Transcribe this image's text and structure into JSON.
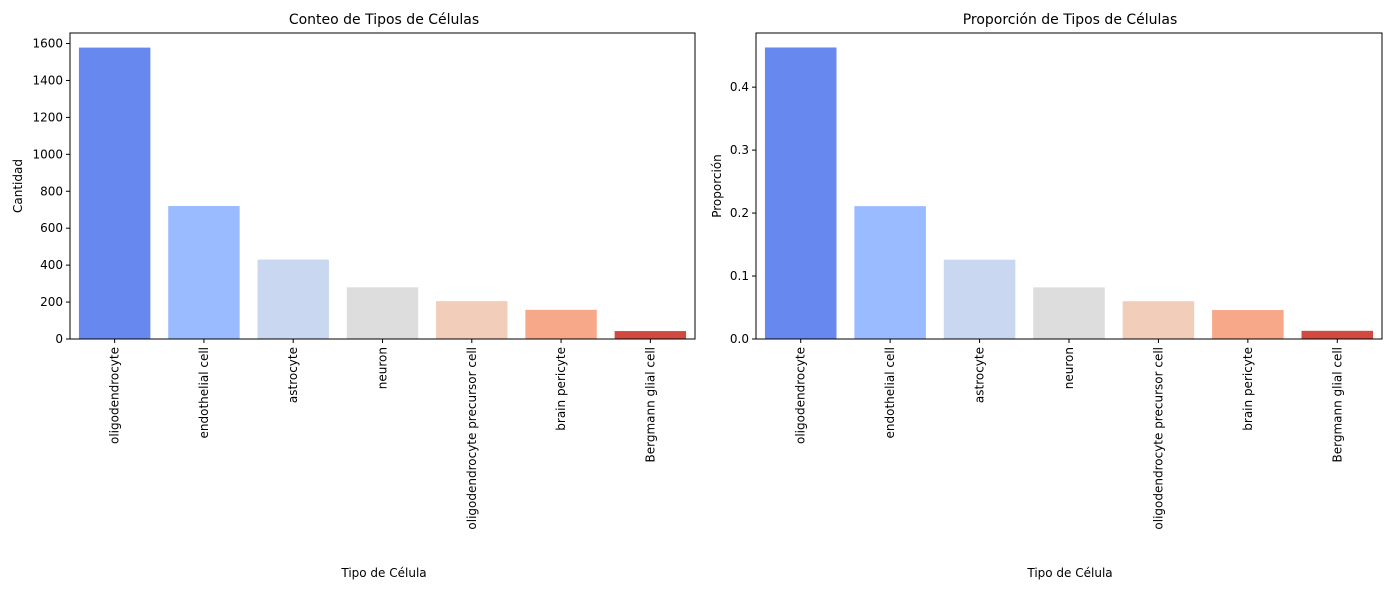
{
  "chart_data": [
    {
      "type": "bar",
      "title": "Conteo de Tipos de Células",
      "xlabel": "Tipo de Célula",
      "ylabel": "Cantidad",
      "categories": [
        "oligodendrocyte",
        "endothelial cell",
        "astrocyte",
        "neuron",
        "oligodendrocyte precursor cell",
        "brain pericyte",
        "Bergmann glial cell"
      ],
      "values": [
        1578,
        720,
        430,
        280,
        205,
        158,
        43
      ],
      "yticks": [
        0,
        200,
        400,
        600,
        800,
        1000,
        1200,
        1400,
        1600
      ],
      "ylim": [
        0,
        1657
      ],
      "grid": false,
      "colors": [
        "#6788ee",
        "#9abbff",
        "#c9d7f0",
        "#dddddd",
        "#f1cdba",
        "#f7a889",
        "#d1493f"
      ]
    },
    {
      "type": "bar",
      "title": "Proporción de Tipos de Células",
      "xlabel": "Tipo de Célula",
      "ylabel": "Proporción",
      "categories": [
        "oligodendrocyte",
        "endothelial cell",
        "astrocyte",
        "neuron",
        "oligodendrocyte precursor cell",
        "brain pericyte",
        "Bergmann glial cell"
      ],
      "values": [
        0.463,
        0.211,
        0.126,
        0.082,
        0.06,
        0.046,
        0.013
      ],
      "yticks": [
        0.0,
        0.1,
        0.2,
        0.3,
        0.4
      ],
      "ytick_labels": [
        "0.0",
        "0.1",
        "0.2",
        "0.3",
        "0.4"
      ],
      "ylim": [
        0,
        0.486
      ],
      "grid": false,
      "colors": [
        "#6788ee",
        "#9abbff",
        "#c9d7f0",
        "#dddddd",
        "#f1cdba",
        "#f7a889",
        "#d1493f"
      ]
    }
  ]
}
